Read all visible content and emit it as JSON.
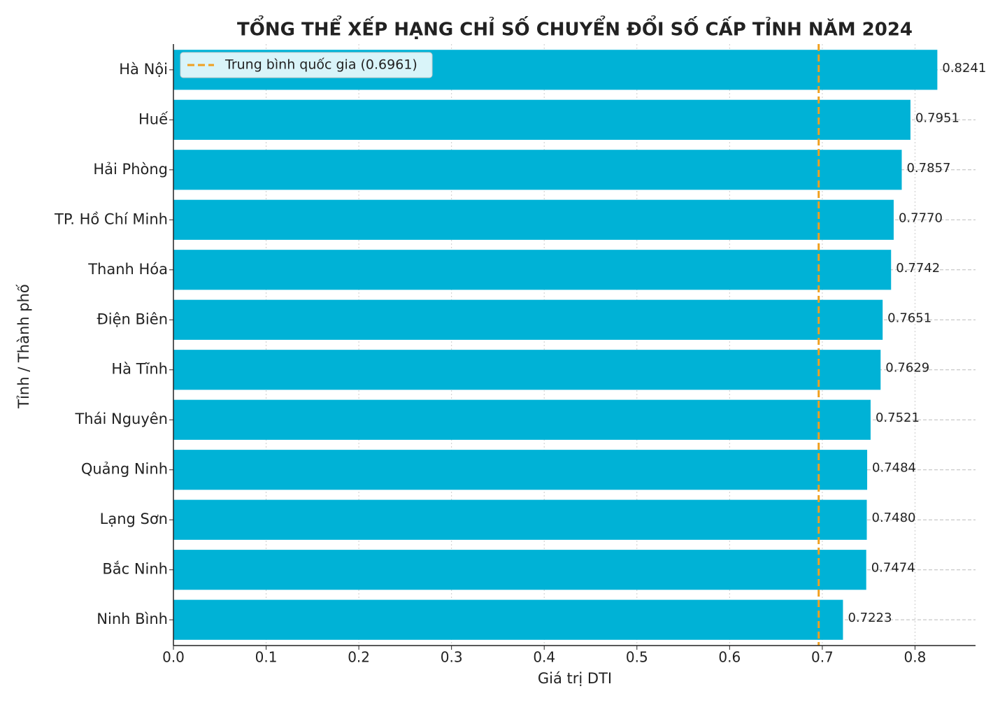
{
  "chart_data": {
    "type": "barh",
    "title": "TỔNG THỂ XẾP HẠNG CHỈ SỐ CHUYỂN ĐỔI SỐ CẤP TỈNH NĂM 2024",
    "x_label": "Giá trị DTI",
    "y_label": "Tỉnh / Thành phố",
    "categories": [
      "Hà Nội",
      "Huế",
      "Hải Phòng",
      "TP. Hồ Chí Minh",
      "Thanh Hóa",
      "Điện Biên",
      "Hà Tĩnh",
      "Thái Nguyên",
      "Quảng Ninh",
      "Lạng Sơn",
      "Bắc Ninh",
      "Ninh Bình"
    ],
    "values": [
      0.8241,
      0.7951,
      0.7857,
      0.777,
      0.7742,
      0.7651,
      0.7629,
      0.7521,
      0.7484,
      0.748,
      0.7474,
      0.7223
    ],
    "value_labels": [
      "0.8241",
      "0.7951",
      "0.7857",
      "0.7770",
      "0.7742",
      "0.7651",
      "0.7629",
      "0.7521",
      "0.7484",
      "0.7480",
      "0.7474",
      "0.7223"
    ],
    "color": "#00b2d6",
    "xlim": [
      0,
      0.8653
    ],
    "xticks": [
      {
        "value": 0,
        "label": "0.0"
      },
      0.1,
      0.2,
      0.3,
      0.4,
      0.5,
      0.6,
      0.7,
      0.8
    ],
    "grid": true,
    "reference_line": {
      "value": 0.6961,
      "label": "Trung bình quốc gia (0.6961)",
      "color": "#f0a020"
    },
    "legend": "upper left"
  }
}
